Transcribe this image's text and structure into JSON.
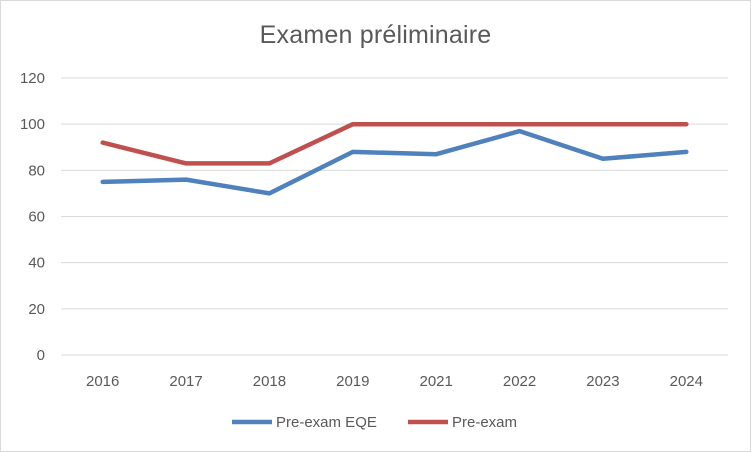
{
  "chart_data": {
    "type": "line",
    "title": "Examen préliminaire",
    "categories": [
      "2016",
      "2017",
      "2018",
      "2019",
      "2021",
      "2022",
      "2023",
      "2024"
    ],
    "ylim": [
      0,
      120
    ],
    "yticks": [
      0,
      20,
      40,
      60,
      80,
      100,
      120
    ],
    "grid": true,
    "legend_position": "bottom",
    "series": [
      {
        "name": "Pre-exam EQE",
        "color": "#4f81bd",
        "values": [
          75,
          76,
          70,
          88,
          87,
          97,
          85,
          88
        ]
      },
      {
        "name": "Pre-exam",
        "color": "#c0504d",
        "values": [
          92,
          83,
          83,
          100,
          100,
          100,
          100,
          100
        ]
      }
    ]
  }
}
